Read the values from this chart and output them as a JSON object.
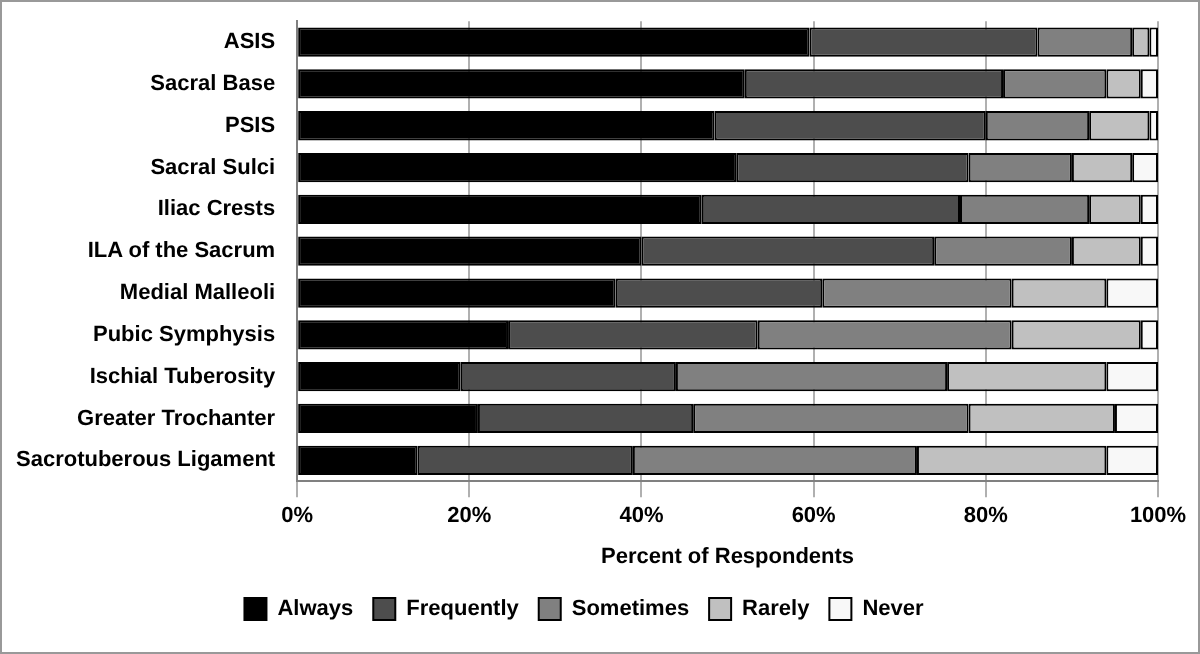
{
  "chart_data": {
    "type": "bar",
    "orientation": "horizontal",
    "stacked": true,
    "xlabel": "Percent of Respondents",
    "categories": [
      "ASIS",
      "Sacral Base",
      "PSIS",
      "Sacral Sulci",
      "Iliac Crests",
      "ILA of the Sacrum",
      "Medial Malleoli",
      "Pubic Symphysis",
      "Ischial Tuberosity",
      "Greater Trochanter",
      "Sacrotuberous Ligament"
    ],
    "series": [
      {
        "name": "Always",
        "color": "#000000",
        "values": [
          59.5,
          52,
          48.5,
          51,
          47,
          40,
          37,
          24.5,
          19,
          21,
          14
        ]
      },
      {
        "name": "Frequently",
        "color": "#4d4d4d",
        "values": [
          26.5,
          30,
          31.5,
          27,
          30,
          34,
          24,
          29,
          25,
          25,
          25
        ]
      },
      {
        "name": "Sometimes",
        "color": "#808080",
        "values": [
          11,
          12,
          12,
          12,
          15,
          16,
          22,
          29.5,
          31.5,
          32,
          33
        ]
      },
      {
        "name": "Rarely",
        "color": "#c0c0c0",
        "values": [
          2,
          4,
          7,
          7,
          6,
          8,
          11,
          15,
          18.5,
          17,
          22
        ]
      },
      {
        "name": "Never",
        "color": "#f8f8f8",
        "values": [
          1,
          2,
          1,
          3,
          2,
          2,
          6,
          2,
          6,
          5,
          6
        ]
      }
    ],
    "xlim": [
      0,
      100
    ],
    "xticks": [
      {
        "value": 0,
        "label": "0%"
      },
      {
        "value": 20,
        "label": "20%"
      },
      {
        "value": 40,
        "label": "40%"
      },
      {
        "value": 60,
        "label": "60%"
      },
      {
        "value": 80,
        "label": "80%"
      },
      {
        "value": 100,
        "label": "100%"
      }
    ],
    "grid": "x",
    "legend": "bottom"
  }
}
